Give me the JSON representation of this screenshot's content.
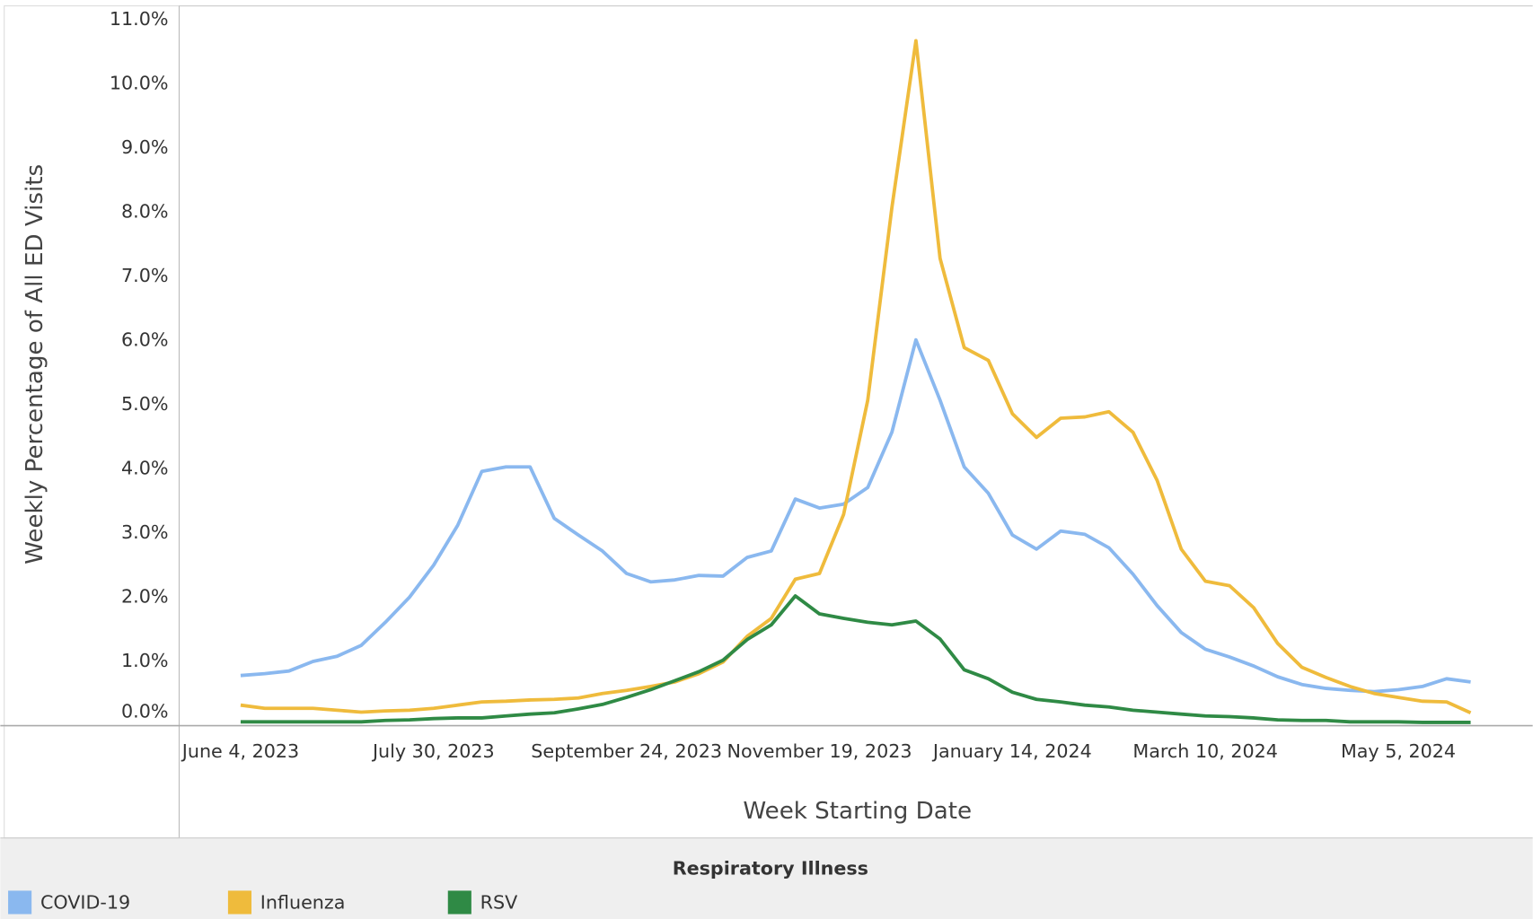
{
  "chart_data": {
    "type": "line",
    "x_label": "Week Starting Date",
    "y_label": "Weekly Percentage of All ED Visits",
    "legend_title": "Respiratory Illness",
    "legend": "bottom-left",
    "grid": false,
    "x": [
      "2023-06-04",
      "2023-06-11",
      "2023-06-18",
      "2023-06-25",
      "2023-07-02",
      "2023-07-09",
      "2023-07-16",
      "2023-07-23",
      "2023-07-30",
      "2023-08-06",
      "2023-08-13",
      "2023-08-20",
      "2023-08-27",
      "2023-09-03",
      "2023-09-10",
      "2023-09-17",
      "2023-09-24",
      "2023-10-01",
      "2023-10-08",
      "2023-10-15",
      "2023-10-22",
      "2023-10-29",
      "2023-11-05",
      "2023-11-12",
      "2023-11-19",
      "2023-11-26",
      "2023-12-03",
      "2023-12-10",
      "2023-12-17",
      "2023-12-24",
      "2023-12-31",
      "2024-01-07",
      "2024-01-14",
      "2024-01-21",
      "2024-01-28",
      "2024-02-04",
      "2024-02-11",
      "2024-02-18",
      "2024-02-25",
      "2024-03-03",
      "2024-03-10",
      "2024-03-17",
      "2024-03-24",
      "2024-03-31",
      "2024-04-07",
      "2024-04-14",
      "2024-04-21",
      "2024-04-28",
      "2024-05-05",
      "2024-05-12",
      "2024-05-19",
      "2024-05-26"
    ],
    "xlim": [
      "2023-05-18",
      "2024-06-13"
    ],
    "xticks": [
      {
        "value": "2023-06-04",
        "label": "June 4, 2023"
      },
      {
        "value": "2023-07-30",
        "label": "July 30, 2023"
      },
      {
        "value": "2023-09-24",
        "label": "September 24, 2023"
      },
      {
        "value": "2023-11-19",
        "label": "November 19, 2023"
      },
      {
        "value": "2024-01-14",
        "label": "January 14, 2024"
      },
      {
        "value": "2024-03-10",
        "label": "March 10, 2024"
      },
      {
        "value": "2024-05-05",
        "label": "May 5, 2024"
      }
    ],
    "ylim": [
      0,
      11
    ],
    "yticks": [
      {
        "value": 0,
        "label": "0.0%"
      },
      {
        "value": 1,
        "label": "1.0%"
      },
      {
        "value": 2,
        "label": "2.0%"
      },
      {
        "value": 3,
        "label": "3.0%"
      },
      {
        "value": 4,
        "label": "4.0%"
      },
      {
        "value": 5,
        "label": "5.0%"
      },
      {
        "value": 6,
        "label": "6.0%"
      },
      {
        "value": 7,
        "label": "7.0%"
      },
      {
        "value": 8,
        "label": "8.0%"
      },
      {
        "value": 9,
        "label": "9.0%"
      },
      {
        "value": 10,
        "label": "10.0%"
      },
      {
        "value": 11,
        "label": "11.0%"
      }
    ],
    "series": [
      {
        "name": "COVID-19",
        "color": "#8ab8ef",
        "values": [
          0.78,
          0.81,
          0.85,
          1.0,
          1.08,
          1.25,
          1.61,
          2.0,
          2.5,
          3.12,
          3.96,
          4.03,
          4.03,
          3.23,
          2.97,
          2.72,
          2.37,
          2.24,
          2.27,
          2.34,
          2.33,
          2.62,
          2.72,
          3.53,
          3.39,
          3.45,
          3.71,
          4.57,
          6.01,
          5.07,
          4.03,
          3.62,
          2.97,
          2.75,
          3.03,
          2.98,
          2.77,
          2.36,
          1.87,
          1.45,
          1.19,
          1.07,
          0.93,
          0.76,
          0.64,
          0.58,
          0.55,
          0.53,
          0.56,
          0.61,
          0.73,
          0.68
        ]
      },
      {
        "name": "Influenza",
        "color": "#efbb3c",
        "values": [
          0.32,
          0.27,
          0.27,
          0.27,
          0.24,
          0.21,
          0.23,
          0.24,
          0.27,
          0.32,
          0.37,
          0.38,
          0.4,
          0.41,
          0.43,
          0.5,
          0.55,
          0.61,
          0.68,
          0.81,
          0.99,
          1.39,
          1.67,
          2.28,
          2.37,
          3.29,
          5.07,
          8.07,
          10.67,
          7.28,
          5.89,
          5.69,
          4.86,
          4.49,
          4.79,
          4.81,
          4.89,
          4.57,
          3.82,
          2.75,
          2.25,
          2.18,
          1.84,
          1.28,
          0.91,
          0.75,
          0.61,
          0.5,
          0.44,
          0.38,
          0.37,
          0.2
        ]
      },
      {
        "name": "RSV",
        "color": "#2f8a45",
        "values": [
          0.06,
          0.06,
          0.06,
          0.06,
          0.06,
          0.06,
          0.08,
          0.09,
          0.11,
          0.12,
          0.12,
          0.15,
          0.18,
          0.2,
          0.26,
          0.33,
          0.44,
          0.56,
          0.7,
          0.84,
          1.02,
          1.34,
          1.57,
          2.02,
          1.74,
          1.67,
          1.61,
          1.57,
          1.63,
          1.35,
          0.87,
          0.73,
          0.52,
          0.41,
          0.37,
          0.32,
          0.29,
          0.24,
          0.21,
          0.18,
          0.15,
          0.14,
          0.12,
          0.09,
          0.08,
          0.08,
          0.06,
          0.06,
          0.06,
          0.05,
          0.05,
          0.05
        ]
      }
    ]
  }
}
